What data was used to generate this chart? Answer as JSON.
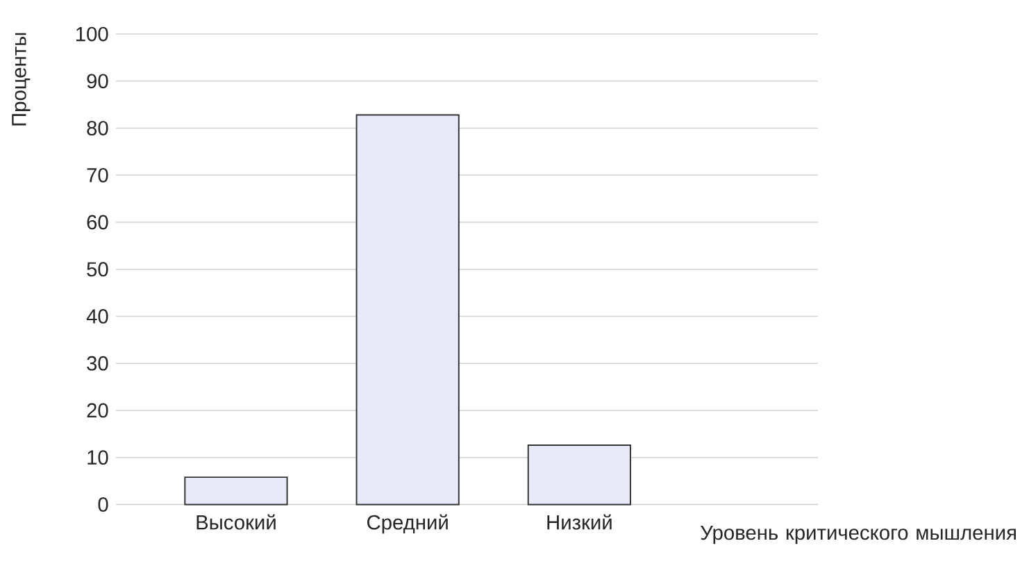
{
  "chart_data": {
    "type": "bar",
    "ylabel": "Проценты",
    "xlabel": "Уровень критического мышления",
    "categories": [
      "Высокий",
      "Средний",
      "Низкий"
    ],
    "values": [
      5.8,
      82.8,
      12.6
    ],
    "color": "#e8eaf8",
    "ylim": [
      0,
      100
    ],
    "yticks": [
      0,
      10,
      20,
      30,
      40,
      50,
      60,
      70,
      80,
      90,
      100
    ],
    "grid": "y"
  }
}
